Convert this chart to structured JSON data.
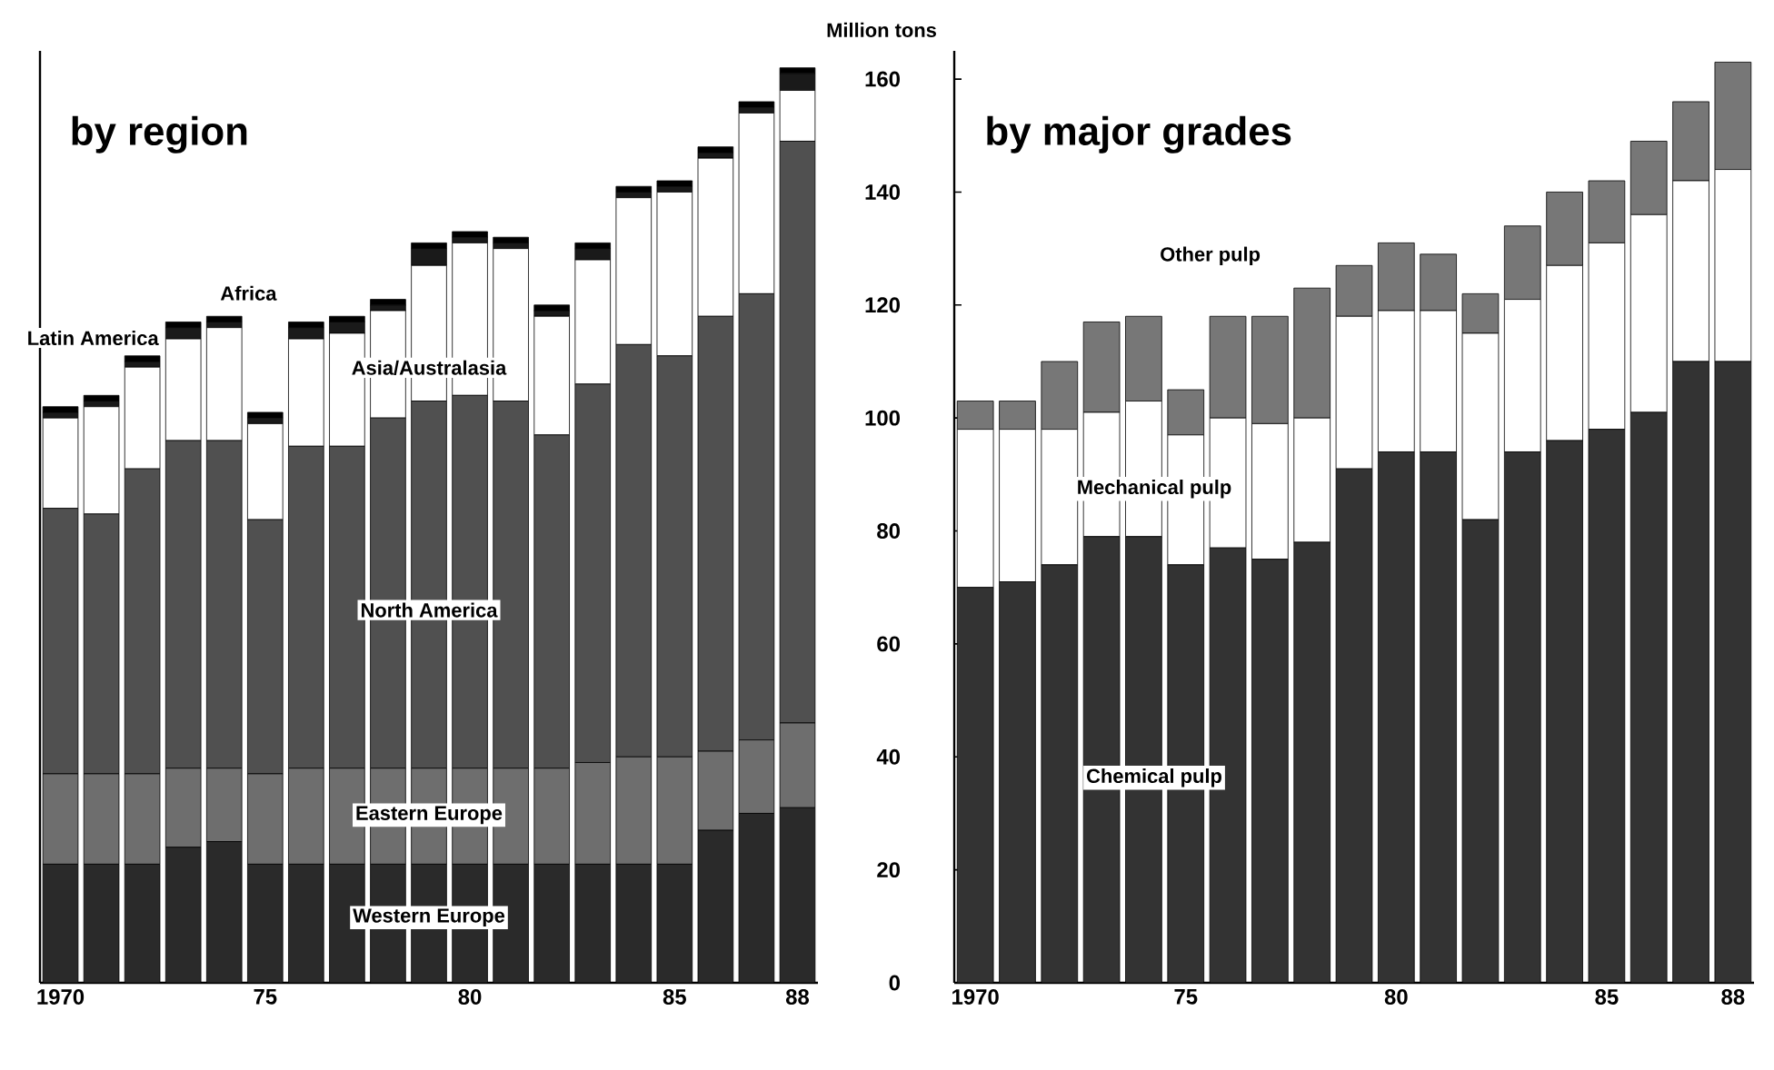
{
  "chart_data": [
    {
      "type": "bar",
      "title": "by region",
      "stacked": true,
      "tick_labels": "x",
      "categories": [
        "1970",
        null,
        null,
        null,
        null,
        "75",
        null,
        null,
        null,
        null,
        "80",
        null,
        null,
        null,
        null,
        "85",
        null,
        null,
        "88"
      ],
      "ylim": [
        0,
        165
      ],
      "yticks": [
        0,
        20,
        40,
        60,
        80,
        100,
        120,
        140,
        160
      ],
      "series": [
        {
          "name": "Western Europe",
          "color": "#2a2a2a",
          "values": [
            21,
            21,
            21,
            24,
            25,
            21,
            21,
            21,
            21,
            21,
            21,
            21,
            21,
            21,
            21,
            21,
            27,
            30,
            31
          ]
        },
        {
          "name": "Eastern Europe",
          "color": "#6e6e6e",
          "values": [
            16,
            16,
            16,
            14,
            13,
            16,
            17,
            17,
            17,
            17,
            17,
            17,
            17,
            18,
            19,
            19,
            14,
            13,
            15
          ]
        },
        {
          "name": "North America",
          "color": "#505050",
          "values": [
            47,
            46,
            54,
            58,
            58,
            45,
            57,
            57,
            62,
            65,
            66,
            65,
            59,
            67,
            73,
            71,
            77,
            79,
            103
          ]
        },
        {
          "name": "Asia/Australasia",
          "color": "#ffffff",
          "values": [
            16,
            19,
            18,
            18,
            20,
            17,
            19,
            20,
            19,
            24,
            27,
            27,
            21,
            22,
            26,
            29,
            28,
            32,
            9
          ]
        },
        {
          "name": "Latin America",
          "color": "#1a1a1a",
          "values": [
            1,
            1,
            1,
            2,
            1,
            1,
            2,
            2,
            1,
            3,
            1,
            1,
            1,
            2,
            1,
            1,
            1,
            1,
            3
          ]
        },
        {
          "name": "Africa",
          "color": "#000000",
          "values": [
            1,
            1,
            1,
            1,
            1,
            1,
            1,
            1,
            1,
            1,
            1,
            1,
            1,
            1,
            1,
            1,
            1,
            1,
            1
          ]
        }
      ]
    },
    {
      "type": "bar",
      "title": "by major grades",
      "stacked": true,
      "ylabel": "Million tons",
      "categories": [
        "1970",
        null,
        null,
        null,
        null,
        "75",
        null,
        null,
        null,
        null,
        "80",
        null,
        null,
        null,
        null,
        "85",
        null,
        null,
        "88"
      ],
      "ylim": [
        0,
        165
      ],
      "yticks": [
        0,
        20,
        40,
        60,
        80,
        100,
        120,
        140,
        160
      ],
      "series": [
        {
          "name": "Chemical pulp",
          "color": "#333333",
          "values": [
            70,
            71,
            74,
            79,
            79,
            74,
            77,
            75,
            78,
            91,
            94,
            94,
            82,
            94,
            96,
            98,
            101,
            110,
            110
          ]
        },
        {
          "name": "Mechanical pulp",
          "color": "#ffffff",
          "values": [
            28,
            27,
            24,
            22,
            24,
            23,
            23,
            24,
            22,
            27,
            25,
            25,
            33,
            27,
            31,
            33,
            35,
            32,
            34
          ]
        },
        {
          "name": "Other pulp",
          "color": "#777777",
          "values": [
            5,
            5,
            12,
            16,
            15,
            8,
            18,
            19,
            23,
            9,
            12,
            10,
            7,
            13,
            13,
            11,
            13,
            14,
            19
          ]
        }
      ]
    }
  ]
}
